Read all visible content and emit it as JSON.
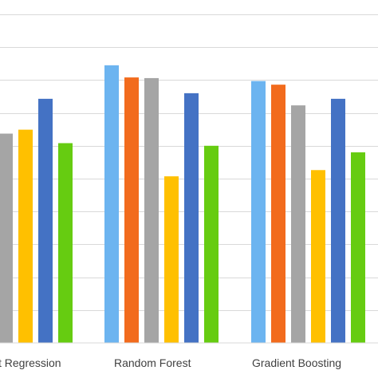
{
  "chart_data": {
    "type": "bar",
    "categories": [
      "t Regression",
      "Random Forest",
      "Gradient Boosting"
    ],
    "series": [
      {
        "color": "#6cb4f0",
        "values": [
          null,
          0.845,
          0.797
        ]
      },
      {
        "color": "#f26b1d",
        "values": [
          null,
          0.808,
          0.786
        ]
      },
      {
        "color": "#a5a5a5",
        "values": [
          0.637,
          0.806,
          0.723
        ]
      },
      {
        "color": "#ffc000",
        "values": [
          0.649,
          0.507,
          0.526
        ]
      },
      {
        "color": "#4472c4",
        "values": [
          0.743,
          0.76,
          0.743
        ]
      },
      {
        "color": "#66cc11",
        "values": [
          0.608,
          0.6,
          0.58
        ]
      }
    ],
    "ylim": [
      0,
      1.0
    ],
    "grid": true,
    "legend": "none"
  }
}
